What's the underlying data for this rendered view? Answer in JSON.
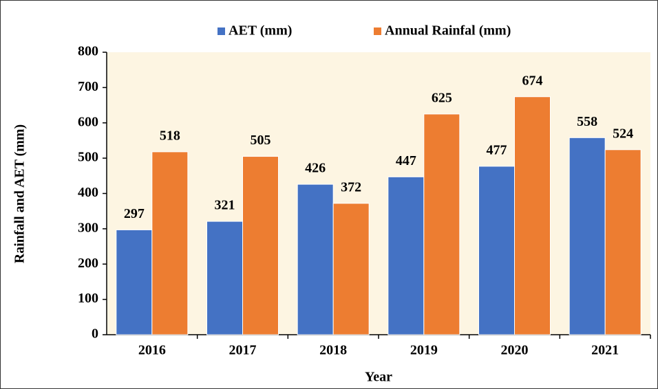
{
  "chart_data": {
    "type": "bar",
    "categories": [
      "2016",
      "2017",
      "2018",
      "2019",
      "2020",
      "2021"
    ],
    "series": [
      {
        "name": "AET (mm)",
        "color": "#4472c4",
        "values": [
          297,
          321,
          426,
          447,
          477,
          558
        ]
      },
      {
        "name": "Annual Rainfal (mm)",
        "color": "#ed7d31",
        "values": [
          518,
          505,
          372,
          625,
          674,
          524
        ]
      }
    ],
    "x_label": "Year",
    "y_label": "Rainfall and AET (mm)",
    "ylim": [
      0,
      800
    ],
    "yticks": [
      0,
      100,
      200,
      300,
      400,
      500,
      600,
      700,
      800
    ],
    "legend": "top"
  }
}
